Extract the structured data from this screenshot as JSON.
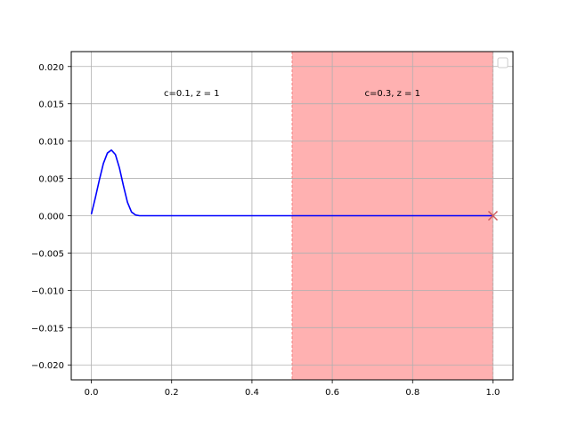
{
  "chart_data": {
    "type": "line",
    "title": "",
    "xlabel": "",
    "ylabel": "",
    "xlim": [
      -0.05,
      1.05
    ],
    "ylim": [
      -0.022,
      0.022
    ],
    "grid": true,
    "legend": {
      "placement": "top-right",
      "entries": []
    },
    "xticks": [
      0.0,
      0.2,
      0.4,
      0.6,
      0.8,
      1.0
    ],
    "xtick_labels": [
      "0.0",
      "0.2",
      "0.4",
      "0.6",
      "0.8",
      "1.0"
    ],
    "yticks": [
      -0.02,
      -0.015,
      -0.01,
      -0.005,
      0.0,
      0.005,
      0.01,
      0.015,
      0.02
    ],
    "ytick_labels": [
      "−0.020",
      "−0.015",
      "−0.010",
      "−0.005",
      "0.000",
      "0.005",
      "0.010",
      "0.015",
      "0.020"
    ],
    "series": [
      {
        "color": "#0000ff",
        "x": [
          0.0,
          0.01,
          0.02,
          0.03,
          0.04,
          0.05,
          0.06,
          0.07,
          0.08,
          0.09,
          0.1,
          0.11,
          0.12,
          0.2,
          0.3,
          0.4,
          0.5,
          0.6,
          0.7,
          0.8,
          0.9,
          1.0
        ],
        "y": [
          0.0002,
          0.0024,
          0.0048,
          0.007,
          0.0084,
          0.0088,
          0.0082,
          0.0064,
          0.004,
          0.0018,
          0.0005,
          0.0001,
          0.0,
          0.0,
          0.0,
          0.0,
          0.0,
          0.0,
          0.0,
          0.0,
          0.0,
          0.0
        ]
      }
    ],
    "regions": [
      {
        "x_start": 0.5,
        "x_end": 1.0,
        "color": "#ffb1b1",
        "edge_color": "#f08080"
      }
    ],
    "markers": [
      {
        "x": 1.0,
        "y": 0.0,
        "symbol": "x",
        "color": "#cd5c5c"
      }
    ],
    "annotations": [
      {
        "text": "c=0.1, z = 1",
        "x": 0.25,
        "y": 0.0165
      },
      {
        "text": "c=0.3, z = 1",
        "x": 0.75,
        "y": 0.0165
      }
    ]
  }
}
